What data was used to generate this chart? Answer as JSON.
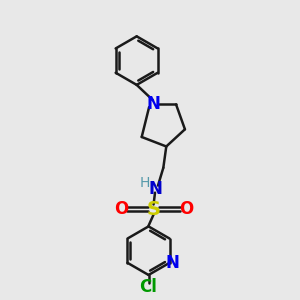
{
  "bg_color": "#e8e8e8",
  "bond_color": "#1a1a1a",
  "bond_width": 1.8,
  "atom_colors": {
    "N_pyrrolidine": "#0000ee",
    "N_amine": "#0000cc",
    "N_pyridine": "#0000ee",
    "S": "#cccc00",
    "O": "#ff0000",
    "Cl": "#009900",
    "H": "#5599aa"
  },
  "figsize": [
    3.0,
    3.0
  ],
  "dpi": 100,
  "xlim": [
    0,
    10
  ],
  "ylim": [
    0,
    10
  ]
}
